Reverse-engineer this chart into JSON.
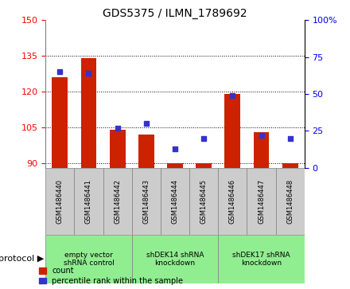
{
  "title": "GDS5375 / ILMN_1789692",
  "samples": [
    "GSM1486440",
    "GSM1486441",
    "GSM1486442",
    "GSM1486443",
    "GSM1486444",
    "GSM1486445",
    "GSM1486446",
    "GSM1486447",
    "GSM1486448"
  ],
  "counts": [
    126,
    134,
    104,
    102,
    90,
    90,
    119,
    103,
    90
  ],
  "percentiles": [
    65,
    64,
    27,
    30,
    13,
    20,
    49,
    22,
    20
  ],
  "ylim_left": [
    88,
    150
  ],
  "yticks_left": [
    90,
    105,
    120,
    135,
    150
  ],
  "ylim_right": [
    0,
    100
  ],
  "yticks_right": [
    0,
    25,
    50,
    75,
    100
  ],
  "bar_color": "#cc2200",
  "dot_color": "#3333cc",
  "protocols": [
    {
      "label": "empty vector\nshRNA control",
      "start": 0,
      "end": 3
    },
    {
      "label": "shDEK14 shRNA\nknockdown",
      "start": 3,
      "end": 6
    },
    {
      "label": "shDEK17 shRNA\nknockdown",
      "start": 6,
      "end": 9
    }
  ],
  "green_color": "#90EE90",
  "gray_color": "#cccccc",
  "legend_count_label": "count",
  "legend_percentile_label": "percentile rank within the sample",
  "xlabel_protocol": "protocol"
}
